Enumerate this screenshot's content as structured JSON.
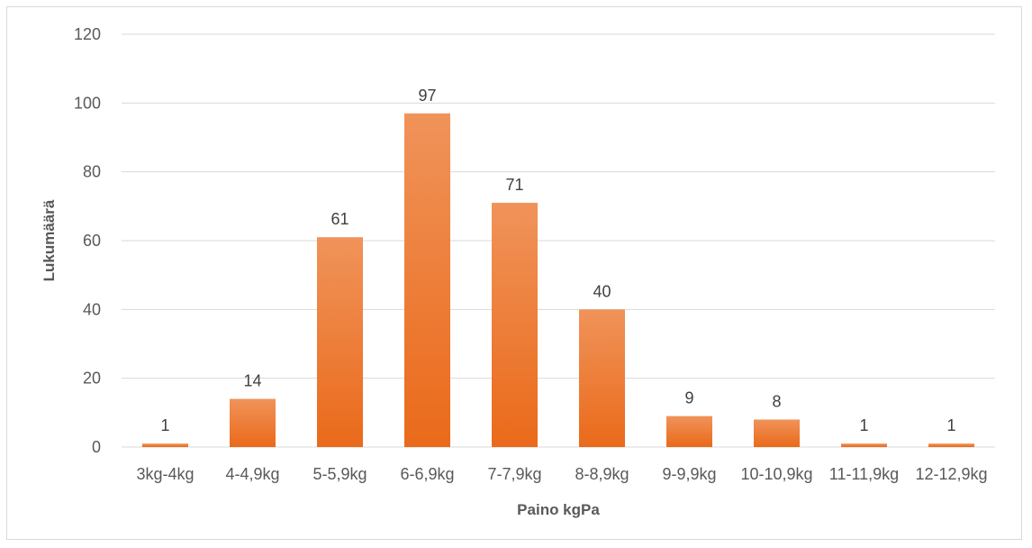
{
  "chart_data": {
    "type": "bar",
    "title": "",
    "xlabel": "Paino kgPa",
    "ylabel": "Lukumäärä",
    "categories": [
      "3kg-4kg",
      "4-4,9kg",
      "5-5,9kg",
      "6-6,9kg",
      "7-7,9kg",
      "8-8,9kg",
      "9-9,9kg",
      "10-10,9kg",
      "11-11,9kg",
      "12-12,9kg"
    ],
    "values": [
      1,
      14,
      61,
      97,
      71,
      40,
      9,
      8,
      1,
      1
    ],
    "ylim": [
      0,
      120
    ],
    "yticks": [
      0,
      20,
      40,
      60,
      80,
      100,
      120
    ],
    "grid": true,
    "legend": "none",
    "bar_color_top": "#f0935a",
    "bar_color_bottom": "#ea6a1a"
  }
}
